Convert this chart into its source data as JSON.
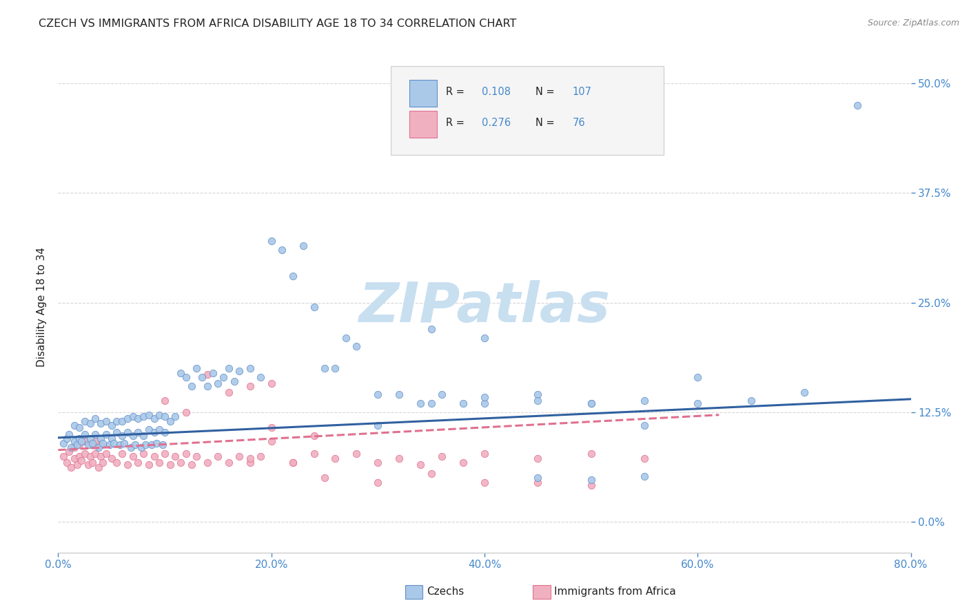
{
  "title": "CZECH VS IMMIGRANTS FROM AFRICA DISABILITY AGE 18 TO 34 CORRELATION CHART",
  "source": "Source: ZipAtlas.com",
  "xlabel_ticks": [
    "0.0%",
    "20.0%",
    "40.0%",
    "60.0%",
    "80.0%"
  ],
  "ylabel_ticks": [
    "0.0%",
    "12.5%",
    "25.0%",
    "37.5%",
    "50.0%"
  ],
  "xmin": 0.0,
  "xmax": 0.8,
  "ymin": -0.035,
  "ymax": 0.525,
  "ylabel": "Disability Age 18 to 34",
  "watermark": "ZIPatlas",
  "czechs_R": "0.108",
  "czechs_N": "107",
  "africa_R": "0.276",
  "africa_N": "76",
  "czechs_scatter_x": [
    0.005,
    0.008,
    0.01,
    0.012,
    0.015,
    0.015,
    0.018,
    0.02,
    0.02,
    0.022,
    0.025,
    0.025,
    0.028,
    0.03,
    0.03,
    0.032,
    0.035,
    0.035,
    0.038,
    0.04,
    0.04,
    0.042,
    0.045,
    0.045,
    0.048,
    0.05,
    0.05,
    0.052,
    0.055,
    0.055,
    0.058,
    0.06,
    0.06,
    0.062,
    0.065,
    0.065,
    0.068,
    0.07,
    0.07,
    0.072,
    0.075,
    0.075,
    0.078,
    0.08,
    0.08,
    0.082,
    0.085,
    0.085,
    0.088,
    0.09,
    0.09,
    0.092,
    0.095,
    0.095,
    0.098,
    0.1,
    0.1,
    0.105,
    0.11,
    0.115,
    0.12,
    0.125,
    0.13,
    0.135,
    0.14,
    0.145,
    0.15,
    0.155,
    0.16,
    0.165,
    0.17,
    0.18,
    0.19,
    0.2,
    0.21,
    0.22,
    0.23,
    0.24,
    0.25,
    0.26,
    0.27,
    0.28,
    0.3,
    0.32,
    0.34,
    0.36,
    0.38,
    0.4,
    0.45,
    0.5,
    0.55,
    0.6,
    0.65,
    0.7,
    0.75,
    0.35,
    0.4,
    0.45,
    0.5,
    0.35,
    0.4,
    0.45,
    0.5,
    0.55,
    0.3,
    0.55,
    0.6
  ],
  "czechs_scatter_y": [
    0.09,
    0.095,
    0.1,
    0.085,
    0.092,
    0.11,
    0.088,
    0.095,
    0.108,
    0.092,
    0.1,
    0.115,
    0.088,
    0.095,
    0.112,
    0.09,
    0.1,
    0.118,
    0.085,
    0.095,
    0.112,
    0.09,
    0.1,
    0.115,
    0.088,
    0.095,
    0.11,
    0.09,
    0.102,
    0.115,
    0.088,
    0.098,
    0.115,
    0.09,
    0.102,
    0.118,
    0.085,
    0.098,
    0.12,
    0.088,
    0.102,
    0.118,
    0.085,
    0.098,
    0.12,
    0.088,
    0.105,
    0.122,
    0.088,
    0.102,
    0.118,
    0.09,
    0.105,
    0.122,
    0.088,
    0.102,
    0.12,
    0.115,
    0.12,
    0.17,
    0.165,
    0.155,
    0.175,
    0.165,
    0.155,
    0.17,
    0.158,
    0.165,
    0.175,
    0.16,
    0.172,
    0.175,
    0.165,
    0.32,
    0.31,
    0.28,
    0.315,
    0.245,
    0.175,
    0.175,
    0.21,
    0.2,
    0.145,
    0.145,
    0.135,
    0.145,
    0.135,
    0.135,
    0.145,
    0.135,
    0.138,
    0.135,
    0.138,
    0.148,
    0.475,
    0.135,
    0.142,
    0.138,
    0.135,
    0.22,
    0.21,
    0.05,
    0.048,
    0.052,
    0.11,
    0.11,
    0.165
  ],
  "africa_scatter_x": [
    0.005,
    0.008,
    0.01,
    0.012,
    0.015,
    0.015,
    0.018,
    0.02,
    0.02,
    0.022,
    0.025,
    0.025,
    0.028,
    0.03,
    0.03,
    0.032,
    0.035,
    0.035,
    0.038,
    0.04,
    0.04,
    0.042,
    0.045,
    0.05,
    0.055,
    0.06,
    0.065,
    0.07,
    0.075,
    0.08,
    0.085,
    0.09,
    0.095,
    0.1,
    0.105,
    0.11,
    0.115,
    0.12,
    0.125,
    0.13,
    0.14,
    0.15,
    0.16,
    0.17,
    0.18,
    0.19,
    0.2,
    0.22,
    0.24,
    0.26,
    0.28,
    0.3,
    0.32,
    0.34,
    0.36,
    0.38,
    0.4,
    0.45,
    0.5,
    0.55,
    0.18,
    0.2,
    0.22,
    0.24,
    0.1,
    0.12,
    0.14,
    0.16,
    0.18,
    0.2,
    0.25,
    0.3,
    0.35,
    0.4,
    0.45,
    0.5
  ],
  "africa_scatter_y": [
    0.075,
    0.068,
    0.08,
    0.062,
    0.072,
    0.085,
    0.065,
    0.075,
    0.088,
    0.07,
    0.078,
    0.092,
    0.065,
    0.075,
    0.088,
    0.068,
    0.078,
    0.092,
    0.062,
    0.075,
    0.088,
    0.068,
    0.078,
    0.072,
    0.068,
    0.078,
    0.065,
    0.075,
    0.068,
    0.078,
    0.065,
    0.075,
    0.068,
    0.078,
    0.065,
    0.075,
    0.068,
    0.078,
    0.065,
    0.075,
    0.068,
    0.075,
    0.068,
    0.075,
    0.068,
    0.075,
    0.092,
    0.068,
    0.078,
    0.072,
    0.078,
    0.068,
    0.072,
    0.065,
    0.075,
    0.068,
    0.078,
    0.072,
    0.078,
    0.072,
    0.155,
    0.158,
    0.068,
    0.098,
    0.138,
    0.125,
    0.168,
    0.148,
    0.072,
    0.108,
    0.05,
    0.045,
    0.055,
    0.045,
    0.045,
    0.042
  ],
  "czechs_trend_x": [
    0.0,
    0.8
  ],
  "czechs_trend_y": [
    0.096,
    0.14
  ],
  "africa_trend_x": [
    0.0,
    0.62
  ],
  "africa_trend_y": [
    0.082,
    0.122
  ],
  "czechs_line_color": "#3060a0",
  "africa_line_color": "#e07090",
  "czechs_scatter_facecolor": "#aac8e8",
  "czechs_scatter_edgecolor": "#6090c8",
  "africa_scatter_facecolor": "#f0b0c0",
  "africa_scatter_edgecolor": "#e07090",
  "title_color": "#222222",
  "source_color": "#888888",
  "axis_tick_color": "#4488cc",
  "ylabel_color": "#222222",
  "grid_color": "#cccccc",
  "background_color": "#ffffff",
  "watermark_color": "#c8dff0",
  "legend_box_color": "#f5f5f5",
  "legend_border_color": "#cccccc"
}
